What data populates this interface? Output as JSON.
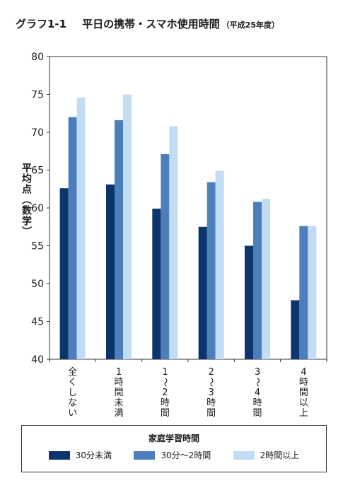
{
  "header": {
    "graph_number": "グラフ1-1",
    "title": "平日の携帯・スマホ使用時間",
    "subtitle": "（平成25年度）"
  },
  "chart_data": {
    "type": "bar",
    "ylabel": "平均点（数学）",
    "ylim": [
      40,
      80
    ],
    "yticks": [
      40,
      45,
      50,
      55,
      60,
      65,
      70,
      75,
      80
    ],
    "grid": false,
    "legend_placement": "bottom",
    "legend_title": "家庭学習時間",
    "categories": [
      "全くしない",
      "1時間未満",
      "1〜2時間",
      "2〜3時間",
      "3〜4時間",
      "4時間以上"
    ],
    "series": [
      {
        "name": "30分未満",
        "color": "#0b356b",
        "values": [
          62.6,
          63.1,
          59.9,
          57.5,
          55.0,
          47.8
        ]
      },
      {
        "name": "30分〜2時間",
        "color": "#4d7ebc",
        "values": [
          72.0,
          71.6,
          67.1,
          63.4,
          60.8,
          57.6
        ]
      },
      {
        "name": "2時間以上",
        "color": "#c3dcf6",
        "values": [
          74.6,
          75.0,
          70.8,
          64.9,
          61.2,
          57.6
        ]
      }
    ]
  }
}
